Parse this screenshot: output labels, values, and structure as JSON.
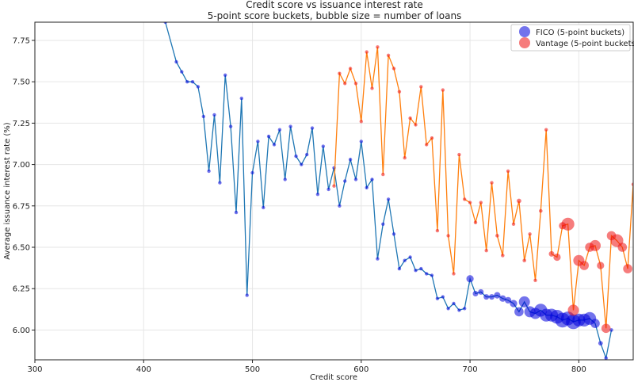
{
  "chart_data": {
    "type": "scatter",
    "title": "Credit score vs issuance interest rate",
    "subtitle": "5-point score buckets, bubble size = number of loans",
    "xlabel": "Credit score",
    "ylabel": "Average issuance interest rate (%)",
    "xlim": [
      300,
      850
    ],
    "ylim": [
      5.82,
      7.86
    ],
    "x_ticks": [
      300,
      400,
      500,
      600,
      700,
      800
    ],
    "y_ticks": [
      6.0,
      6.25,
      6.5,
      6.75,
      7.0,
      7.25,
      7.5,
      7.75
    ],
    "x_tick_labels": [
      "300",
      "400",
      "500",
      "600",
      "700",
      "800"
    ],
    "y_tick_labels": [
      "6.00",
      "6.25",
      "6.50",
      "6.75",
      "7.00",
      "7.25",
      "7.50",
      "7.75"
    ],
    "grid": true,
    "legend_position": "top-right",
    "bubble_size_meaning": "number of loans",
    "series": [
      {
        "name": "FICO (5-point buckets)",
        "color": "#0000dd",
        "line_color": "#1f77b4",
        "x": [
          420,
          430,
          435,
          440,
          445,
          450,
          455,
          460,
          465,
          470,
          475,
          480,
          485,
          490,
          495,
          500,
          505,
          510,
          515,
          520,
          525,
          530,
          535,
          540,
          545,
          550,
          555,
          560,
          565,
          570,
          575,
          580,
          585,
          590,
          595,
          600,
          605,
          610,
          615,
          620,
          625,
          630,
          635,
          640,
          645,
          650,
          655,
          660,
          665,
          670,
          675,
          680,
          685,
          690,
          695,
          700,
          705,
          710,
          715,
          720,
          725,
          730,
          735,
          740,
          745,
          750,
          755,
          760,
          765,
          770,
          775,
          780,
          785,
          790,
          795,
          800,
          805,
          810,
          815,
          820,
          825,
          830
        ],
        "y": [
          7.86,
          7.62,
          7.56,
          7.5,
          7.5,
          7.47,
          7.29,
          6.96,
          7.3,
          6.89,
          7.54,
          7.23,
          6.71,
          7.4,
          6.21,
          6.95,
          7.14,
          6.74,
          7.17,
          7.12,
          7.21,
          6.91,
          7.23,
          7.05,
          7.0,
          7.06,
          7.22,
          6.82,
          7.11,
          6.85,
          6.98,
          6.75,
          6.9,
          7.03,
          6.91,
          7.14,
          6.86,
          6.91,
          6.43,
          6.64,
          6.79,
          6.58,
          6.37,
          6.42,
          6.44,
          6.36,
          6.37,
          6.34,
          6.33,
          6.19,
          6.2,
          6.13,
          6.16,
          6.12,
          6.13,
          6.31,
          6.22,
          6.23,
          6.2,
          6.2,
          6.21,
          6.19,
          6.18,
          6.16,
          6.11,
          6.17,
          6.11,
          6.1,
          6.12,
          6.09,
          6.09,
          6.08,
          6.06,
          6.07,
          6.05,
          6.06,
          6.06,
          6.07,
          6.04,
          5.92,
          5.83,
          6.0
        ],
        "sizes": [
          2,
          2,
          2,
          2,
          2,
          2,
          2,
          2,
          2,
          2,
          2,
          2,
          2,
          2,
          2,
          2,
          2,
          2,
          2,
          2,
          2,
          2,
          2,
          2,
          2,
          2,
          2,
          2,
          2,
          2,
          2,
          2,
          2,
          2,
          2,
          2,
          2,
          2,
          2,
          2,
          2,
          2,
          2,
          2,
          2,
          2,
          2,
          2,
          2,
          2,
          2,
          2,
          2,
          2,
          2,
          8,
          6,
          6,
          6,
          6,
          7,
          7,
          7,
          8,
          10,
          12,
          12,
          12,
          14,
          14,
          14,
          15,
          16,
          15,
          16,
          14,
          14,
          14,
          10,
          5,
          4,
          4
        ]
      },
      {
        "name": "Vantage (5-point buckets)",
        "color": "#ee1111",
        "line_color": "#ff7f0e",
        "x": [
          575,
          580,
          585,
          590,
          595,
          600,
          605,
          610,
          615,
          620,
          625,
          630,
          635,
          640,
          645,
          650,
          655,
          660,
          665,
          670,
          675,
          680,
          685,
          690,
          695,
          700,
          705,
          710,
          715,
          720,
          725,
          730,
          735,
          740,
          745,
          750,
          755,
          760,
          765,
          770,
          775,
          780,
          785,
          790,
          795,
          800,
          805,
          810,
          815,
          820,
          825,
          830,
          835,
          840,
          845,
          850
        ],
        "y": [
          6.87,
          7.55,
          7.49,
          7.58,
          7.49,
          7.26,
          7.68,
          7.46,
          7.71,
          6.94,
          7.66,
          7.58,
          7.44,
          7.04,
          7.28,
          7.24,
          7.47,
          7.12,
          7.16,
          6.6,
          7.45,
          6.57,
          6.34,
          7.06,
          6.79,
          6.77,
          6.65,
          6.77,
          6.48,
          6.89,
          6.57,
          6.45,
          6.96,
          6.64,
          6.78,
          6.42,
          6.58,
          6.3,
          6.72,
          7.21,
          6.46,
          6.44,
          6.63,
          6.64,
          6.12,
          6.42,
          6.39,
          6.5,
          6.51,
          6.39,
          6.01,
          6.57,
          6.54,
          6.5,
          6.37,
          6.88
        ],
        "sizes": [
          2,
          2,
          2,
          2,
          2,
          2,
          2,
          2,
          2,
          2,
          2,
          3,
          2,
          2,
          2,
          2,
          2,
          3,
          2,
          3,
          2,
          2,
          2,
          2,
          2,
          2,
          3,
          2,
          3,
          3,
          4,
          4,
          3,
          3,
          5,
          4,
          3,
          3,
          4,
          2,
          6,
          8,
          8,
          14,
          12,
          12,
          10,
          10,
          12,
          8,
          10,
          10,
          14,
          10,
          10,
          3
        ]
      }
    ]
  }
}
